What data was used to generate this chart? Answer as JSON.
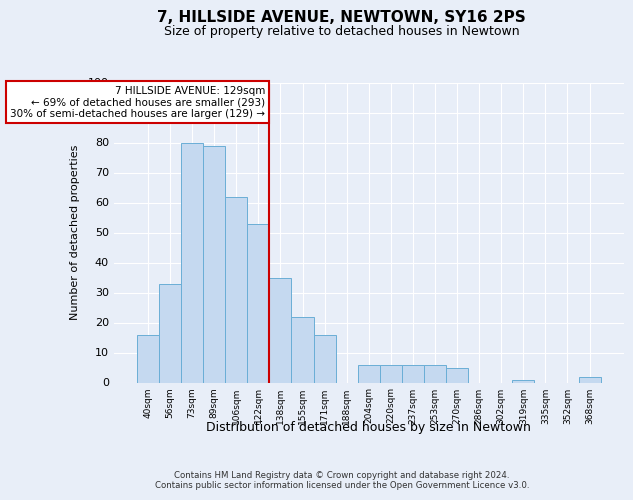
{
  "title": "7, HILLSIDE AVENUE, NEWTOWN, SY16 2PS",
  "subtitle": "Size of property relative to detached houses in Newtown",
  "xlabel": "Distribution of detached houses by size in Newtown",
  "ylabel": "Number of detached properties",
  "bar_color": "#c5d9f0",
  "bar_edge_color": "#6aaed6",
  "categories": [
    "40sqm",
    "56sqm",
    "73sqm",
    "89sqm",
    "106sqm",
    "122sqm",
    "138sqm",
    "155sqm",
    "171sqm",
    "188sqm",
    "204sqm",
    "220sqm",
    "237sqm",
    "253sqm",
    "270sqm",
    "286sqm",
    "302sqm",
    "319sqm",
    "335sqm",
    "352sqm",
    "368sqm"
  ],
  "values": [
    16,
    33,
    80,
    79,
    62,
    53,
    35,
    22,
    16,
    0,
    6,
    6,
    6,
    6,
    5,
    0,
    0,
    1,
    0,
    0,
    2
  ],
  "ylim": [
    0,
    100
  ],
  "yticks": [
    0,
    10,
    20,
    30,
    40,
    50,
    60,
    70,
    80,
    90,
    100
  ],
  "red_line_x": 5.5,
  "annotation_text_line1": "7 HILLSIDE AVENUE: 129sqm",
  "annotation_text_line2": "← 69% of detached houses are smaller (293)",
  "annotation_text_line3": "30% of semi-detached houses are larger (129) →",
  "footer_line1": "Contains HM Land Registry data © Crown copyright and database right 2024.",
  "footer_line2": "Contains public sector information licensed under the Open Government Licence v3.0.",
  "background_color": "#e8eef8",
  "grid_color": "#ffffff"
}
